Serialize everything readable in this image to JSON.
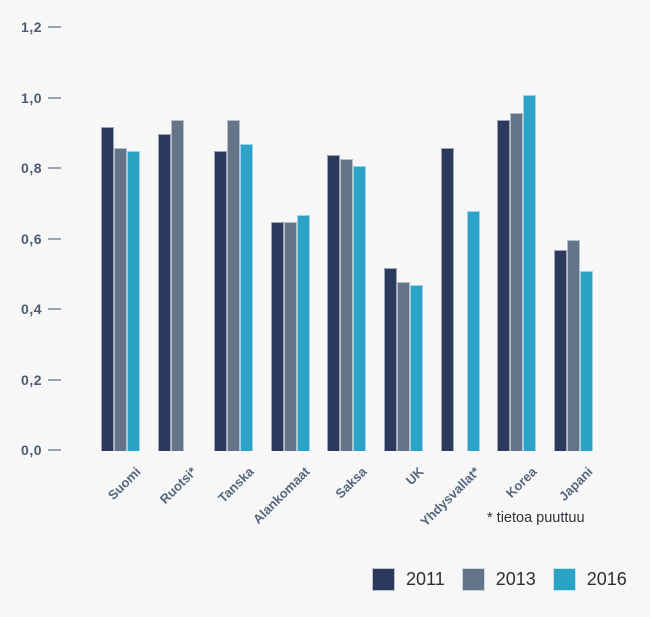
{
  "chart_data": {
    "type": "bar",
    "title": "",
    "categories": [
      "Suomi",
      "Ruotsi*",
      "Tanska",
      "Alankomaat",
      "Saksa",
      "UK",
      "Yhdysvallat*",
      "Korea",
      "Japani"
    ],
    "series": [
      {
        "name": "2011",
        "color": "#2b3a5c",
        "values": [
          0.92,
          0.9,
          0.85,
          0.65,
          0.84,
          0.52,
          0.86,
          0.94,
          0.57
        ]
      },
      {
        "name": "2013",
        "color": "#64758a",
        "values": [
          0.86,
          0.94,
          0.94,
          0.65,
          0.83,
          0.48,
          null,
          0.96,
          0.6
        ]
      },
      {
        "name": "2016",
        "color": "#2ba3c7",
        "values": [
          0.85,
          null,
          0.87,
          0.67,
          0.81,
          0.47,
          0.68,
          1.01,
          0.51
        ]
      }
    ],
    "ylim": [
      0,
      1.2
    ],
    "yticks": [
      {
        "value": 1.2,
        "label": "1,2"
      },
      {
        "value": 1.0,
        "label": "1,0"
      },
      {
        "value": 0.8,
        "label": "0,8"
      },
      {
        "value": 0.6,
        "label": "0,6"
      },
      {
        "value": 0.4,
        "label": "0,4"
      },
      {
        "value": 0.2,
        "label": "0,2"
      },
      {
        "value": 0.0,
        "label": "0,0"
      }
    ],
    "grid": false,
    "legend_position": "bottom-right",
    "footnote": "* tietoa puuttuu"
  },
  "colors": {
    "background": "#f7f7f8",
    "axis_text": "#4d5b73",
    "tick_dash": "#9aa6b6",
    "category_text": "#56677d",
    "note_text": "#2f3338",
    "legend_text": "#2e2e2e"
  }
}
